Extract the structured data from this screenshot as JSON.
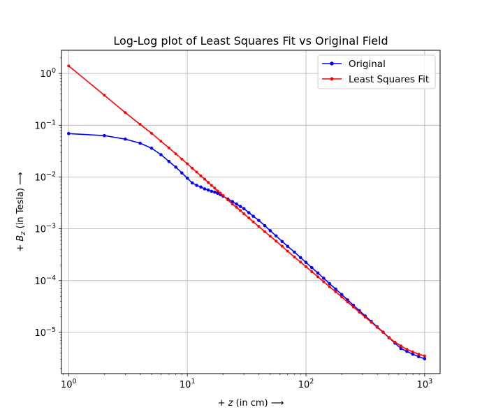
{
  "chart_data": {
    "type": "line",
    "title": "Log-Log plot of Least Squares Fit vs Original Field",
    "xlabel": "+ z (in cm) ⟶",
    "ylabel": "+ B_z (in Tesla) ⟶",
    "xscale": "log",
    "yscale": "log",
    "xlim": [
      0.87,
      1350
    ],
    "ylim": [
      1.6e-06,
      2.8
    ],
    "grid": true,
    "legend_position": "top-right",
    "x_ticks": [
      {
        "value": 1,
        "base": "10",
        "exp": "0"
      },
      {
        "value": 10,
        "base": "10",
        "exp": "1"
      },
      {
        "value": 100,
        "base": "10",
        "exp": "2"
      },
      {
        "value": 1000,
        "base": "10",
        "exp": "3"
      }
    ],
    "y_ticks": [
      {
        "value": 1e-05,
        "base": "10",
        "exp": "−5"
      },
      {
        "value": 0.0001,
        "base": "10",
        "exp": "−4"
      },
      {
        "value": 0.001,
        "base": "10",
        "exp": "−3"
      },
      {
        "value": 0.01,
        "base": "10",
        "exp": "−2"
      },
      {
        "value": 0.1,
        "base": "10",
        "exp": "−1"
      },
      {
        "value": 1,
        "base": "10",
        "exp": "0"
      }
    ],
    "series": [
      {
        "name": "Original",
        "color": "#0000ff",
        "marker_size": 2.3,
        "x": [
          1,
          2,
          3,
          4,
          5,
          6,
          7,
          8,
          9,
          10,
          11,
          12,
          13,
          14,
          15,
          16,
          17,
          18,
          19,
          20,
          22,
          24,
          26,
          28,
          30,
          33,
          36,
          40,
          45,
          50,
          56,
          63,
          70,
          80,
          90,
          100,
          112,
          126,
          141,
          158,
          178,
          200,
          224,
          251,
          282,
          316,
          355,
          398,
          447,
          501,
          562,
          631,
          708,
          794,
          891,
          1000
        ],
        "y": [
          0.069,
          0.063,
          0.054,
          0.045,
          0.036,
          0.027,
          0.02,
          0.0155,
          0.012,
          0.0095,
          0.0077,
          0.0069,
          0.0064,
          0.0059,
          0.0056,
          0.0053,
          0.0051,
          0.00485,
          0.00458,
          0.00428,
          0.00375,
          0.00335,
          0.003,
          0.0027,
          0.00245,
          0.00205,
          0.00175,
          0.00145,
          0.00115,
          0.00092,
          0.00073,
          0.00057,
          0.00046,
          0.000355,
          0.000278,
          0.000225,
          0.000178,
          0.00014,
          0.000111,
          8.75e-05,
          6.85e-05,
          5.4e-05,
          4.25e-05,
          3.34e-05,
          2.63e-05,
          2.07e-05,
          1.63e-05,
          1.28e-05,
          1.01e-05,
          7.9e-06,
          6.2e-06,
          4.9e-06,
          4.3e-06,
          3.8e-06,
          3.4e-06,
          3.1e-06
        ]
      },
      {
        "name": "Least Squares Fit",
        "color": "#ff0000",
        "marker_size": 2.0,
        "x": [
          1,
          2,
          3,
          4,
          5,
          6,
          7,
          8,
          9,
          10,
          11,
          12,
          13,
          14,
          15,
          16,
          17,
          18,
          19,
          20,
          22,
          24,
          26,
          28,
          30,
          33,
          36,
          40,
          45,
          50,
          56,
          63,
          70,
          80,
          90,
          100,
          112,
          126,
          141,
          158,
          178,
          200,
          224,
          251,
          282,
          316,
          355,
          398,
          447,
          501,
          562,
          631,
          708,
          794,
          891,
          1000
        ],
        "y": [
          1.4,
          0.38,
          0.175,
          0.104,
          0.07,
          0.049,
          0.0365,
          0.028,
          0.0222,
          0.018,
          0.0148,
          0.0124,
          0.0105,
          0.0091,
          0.0079,
          0.0069,
          0.0061,
          0.0054,
          0.0049,
          0.0044,
          0.0036,
          0.003,
          0.0026,
          0.00225,
          0.00195,
          0.00162,
          0.00136,
          0.00111,
          0.00088,
          0.00072,
          0.00058,
          0.00046,
          0.00037,
          0.000285,
          0.000228,
          0.000186,
          0.000149,
          0.000119,
          9.5e-05,
          7.62e-05,
          6.08e-05,
          4.85e-05,
          3.87e-05,
          3.09e-05,
          2.46e-05,
          1.97e-05,
          1.57e-05,
          1.25e-05,
          1e-05,
          7.9e-06,
          6.5e-06,
          5.5e-06,
          4.7e-06,
          4.2e-06,
          3.8e-06,
          3.5e-06
        ]
      }
    ]
  }
}
